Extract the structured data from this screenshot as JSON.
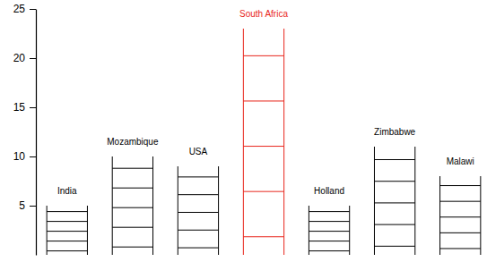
{
  "chart_data": {
    "type": "bar",
    "categories": [
      "India",
      "Mozambique",
      "USA",
      "South Africa",
      "Holland",
      "Zimbabwe",
      "Malawi"
    ],
    "values": [
      5,
      10,
      9,
      23,
      5,
      11,
      8
    ],
    "colors": [
      "#000000",
      "#000000",
      "#000000",
      "#e8261c",
      "#000000",
      "#000000",
      "#000000"
    ],
    "ylim": [
      0,
      25
    ],
    "yticks": [
      5,
      10,
      15,
      20,
      25
    ],
    "grid": false
  }
}
